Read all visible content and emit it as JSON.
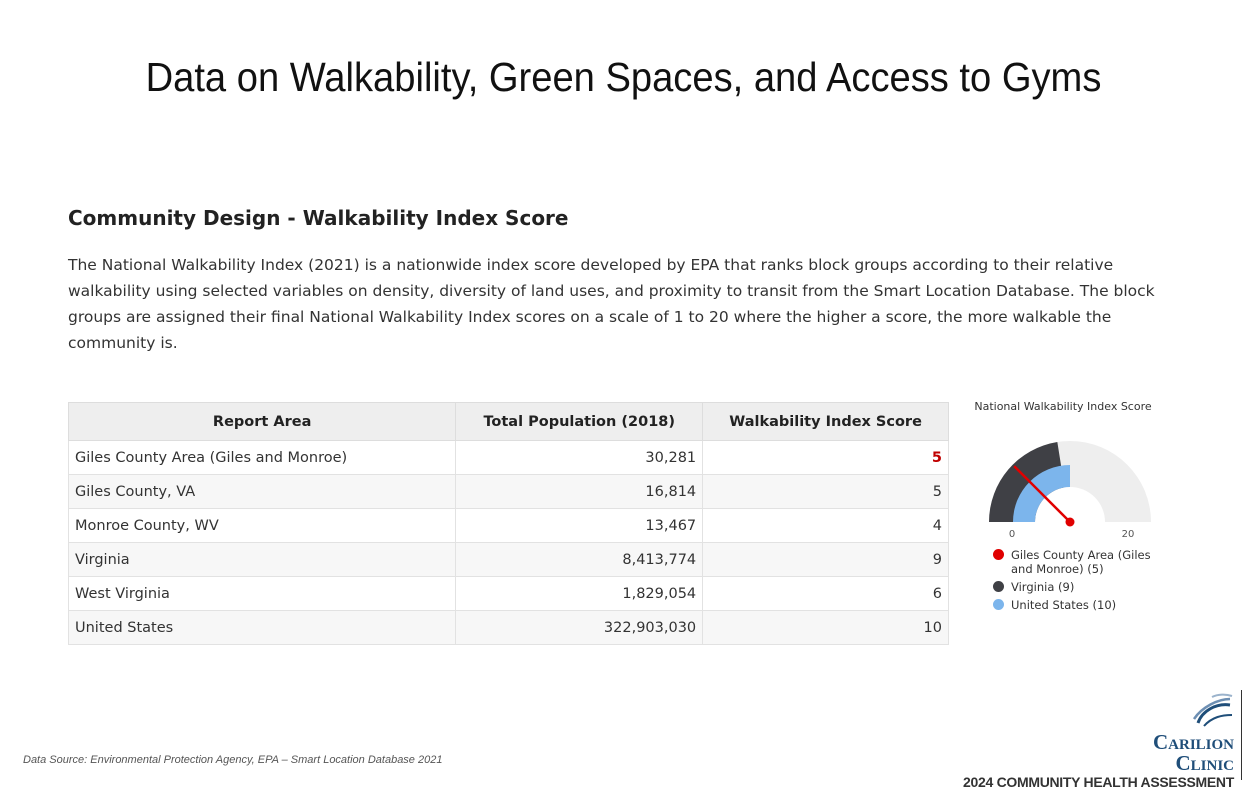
{
  "slide": {
    "title": "Data on Walkability, Green Spaces, and Access to Gyms"
  },
  "section": {
    "title": "Community Design - Walkability Index Score",
    "description": "The National Walkability Index (2021) is a nationwide index score developed by EPA that ranks block groups according to their relative walkability using selected variables on density, diversity of land uses, and proximity to transit from the Smart Location Database. The block groups are assigned their final National Walkability Index scores on a scale of 1 to 20 where the higher a score, the more walkable the community is."
  },
  "table": {
    "headers": [
      "Report Area",
      "Total Population (2018)",
      "Walkability Index Score"
    ],
    "rows": [
      {
        "area": "Giles County Area (Giles and Monroe)",
        "population": "30,281",
        "score": "5"
      },
      {
        "area": "Giles County, VA",
        "population": "16,814",
        "score": "5"
      },
      {
        "area": "Monroe County, WV",
        "population": "13,467",
        "score": "4"
      },
      {
        "area": "Virginia",
        "population": "8,413,774",
        "score": "9"
      },
      {
        "area": "West Virginia",
        "population": "1,829,054",
        "score": "6"
      },
      {
        "area": "United States",
        "population": "322,903,030",
        "score": "10"
      }
    ]
  },
  "chart_data": {
    "type": "gauge",
    "title": "National Walkability Index Score",
    "range": [
      0,
      20
    ],
    "tick_labels": [
      "0",
      "20"
    ],
    "series": [
      {
        "name": "Giles County Area (Giles and Monroe) (5)",
        "value": 5,
        "color": "#e00000",
        "mark": "needle"
      },
      {
        "name": "Virginia (9)",
        "value": 9,
        "color": "#3f4045",
        "mark": "outer-band"
      },
      {
        "name": "United States (10)",
        "value": 10,
        "color": "#7cb5ec",
        "mark": "inner-band"
      }
    ]
  },
  "footer": {
    "source": "Data Source: Environmental Protection Agency, EPA – Smart Location Database 2021",
    "logo_line1": "Carilion",
    "logo_line2": "Clinic",
    "assessment": "2024 COMMUNITY HEALTH ASSESSMENT"
  },
  "colors": {
    "highlight": "#c00000",
    "brand": "#1f4e79",
    "gauge_background": "#eeeeee"
  }
}
